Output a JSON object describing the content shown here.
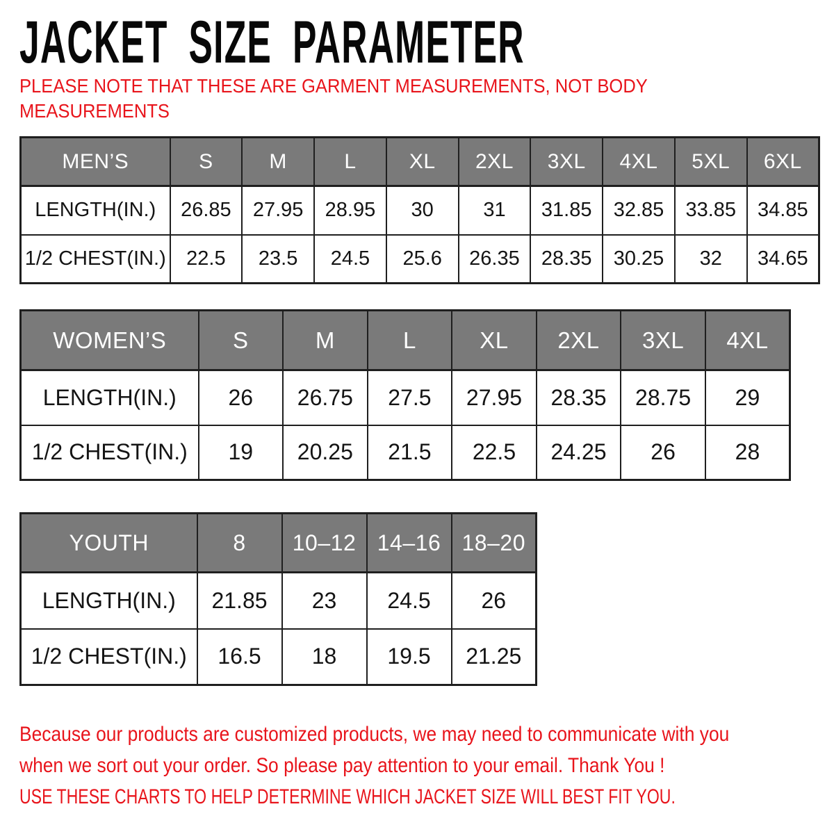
{
  "title": "JACKET SIZE PARAMETER",
  "garment_note": "PLEASE NOTE THAT THESE ARE GARMENT MEASUREMENTS, NOT BODY\nMEASUREMENTS",
  "tables": {
    "mens": {
      "header": [
        "MEN’S",
        "S",
        "M",
        "L",
        "XL",
        "2XL",
        "3XL",
        "4XL",
        "5XL",
        "6XL"
      ],
      "rows": [
        {
          "label": "LENGTH(IN.)",
          "values": [
            "26.85",
            "27.95",
            "28.95",
            "30",
            "31",
            "31.85",
            "32.85",
            "33.85",
            "34.85"
          ]
        },
        {
          "label": "1/2 CHEST(IN.)",
          "values": [
            "22.5",
            "23.5",
            "24.5",
            "25.6",
            "26.35",
            "28.35",
            "30.25",
            "32",
            "34.65"
          ]
        }
      ]
    },
    "womens": {
      "header": [
        "WOMEN’S",
        "S",
        "M",
        "L",
        "XL",
        "2XL",
        "3XL",
        "4XL"
      ],
      "rows": [
        {
          "label": "LENGTH(IN.)",
          "values": [
            "26",
            "26.75",
            "27.5",
            "27.95",
            "28.35",
            "28.75",
            "29"
          ]
        },
        {
          "label": "1/2 CHEST(IN.)",
          "values": [
            "19",
            "20.25",
            "21.5",
            "22.5",
            "24.25",
            "26",
            "28"
          ]
        }
      ]
    },
    "youth": {
      "header": [
        "YOUTH",
        "8",
        "10–12",
        "14–16",
        "18–20"
      ],
      "rows": [
        {
          "label": "LENGTH(IN.)",
          "values": [
            "21.85",
            "23",
            "24.5",
            "26"
          ]
        },
        {
          "label": "1/2 CHEST(IN.)",
          "values": [
            "16.5",
            "18",
            "19.5",
            "21.25"
          ]
        }
      ]
    }
  },
  "custom_order_note": "Because our products are customized products, we may need to communicate with you\nwhen we sort out your order. So please pay attention to your email. Thank You !",
  "fit_advice_note": "USE THESE CHARTS TO HELP DETERMINE WHICH JACKET SIZE WILL BEST FIT YOU.",
  "colors": {
    "accent_red": "#e8141b",
    "header_gray": "#7a7a7a",
    "border_black": "#1f1f1f",
    "background": "#ffffff"
  }
}
